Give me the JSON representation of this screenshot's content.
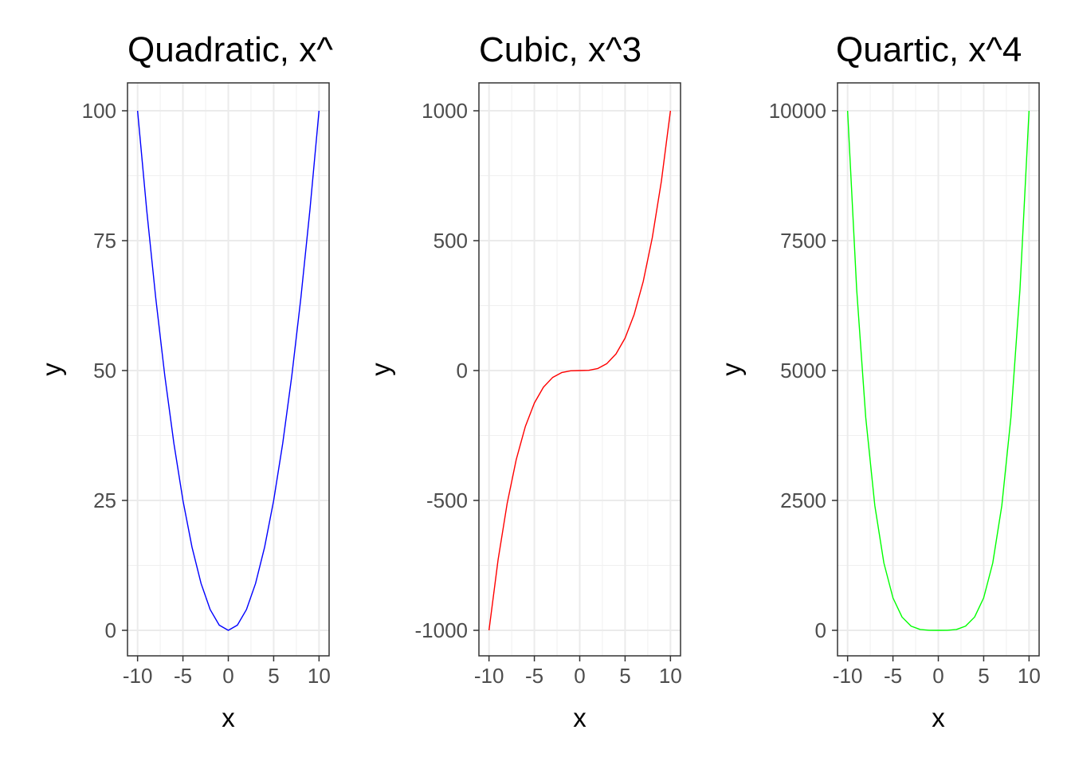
{
  "chart_data": [
    {
      "type": "line",
      "title": "Quadratic, x^",
      "xlabel": "x",
      "ylabel": "y",
      "xlim": [
        -10,
        10
      ],
      "ylim": [
        0,
        100
      ],
      "xticks": [
        -10,
        -5,
        0,
        5,
        10
      ],
      "xtick_labels": [
        "-10",
        "-5",
        "0",
        "5",
        "10"
      ],
      "yticks": [
        0,
        25,
        50,
        75,
        100
      ],
      "ytick_labels": [
        "0",
        "25",
        "50",
        "75",
        "100"
      ],
      "grid": true,
      "color": "#0000ff",
      "series": [
        {
          "x": [
            -10,
            -9,
            -8,
            -7,
            -6,
            -5,
            -4,
            -3,
            -2,
            -1,
            0,
            1,
            2,
            3,
            4,
            5,
            6,
            7,
            8,
            9,
            10
          ],
          "y": [
            100,
            81,
            64,
            49,
            36,
            25,
            16,
            9,
            4,
            1,
            0,
            1,
            4,
            9,
            16,
            25,
            36,
            49,
            64,
            81,
            100
          ]
        }
      ]
    },
    {
      "type": "line",
      "title": "Cubic, x^3",
      "xlabel": "x",
      "ylabel": "y",
      "xlim": [
        -10,
        10
      ],
      "ylim": [
        -1000,
        1000
      ],
      "xticks": [
        -10,
        -5,
        0,
        5,
        10
      ],
      "xtick_labels": [
        "-10",
        "-5",
        "0",
        "5",
        "10"
      ],
      "yticks": [
        -1000,
        -500,
        0,
        500,
        1000
      ],
      "ytick_labels": [
        "-1000",
        "-500",
        "0",
        "500",
        "1000"
      ],
      "grid": true,
      "color": "#ff0000",
      "series": [
        {
          "x": [
            -10,
            -9,
            -8,
            -7,
            -6,
            -5,
            -4,
            -3,
            -2,
            -1,
            0,
            1,
            2,
            3,
            4,
            5,
            6,
            7,
            8,
            9,
            10
          ],
          "y": [
            -1000,
            -729,
            -512,
            -343,
            -216,
            -125,
            -64,
            -27,
            -8,
            -1,
            0,
            1,
            8,
            27,
            64,
            125,
            216,
            343,
            512,
            729,
            1000
          ]
        }
      ]
    },
    {
      "type": "line",
      "title": "Quartic, x^4",
      "xlabel": "x",
      "ylabel": "y",
      "xlim": [
        -10,
        10
      ],
      "ylim": [
        0,
        10000
      ],
      "xticks": [
        -10,
        -5,
        0,
        5,
        10
      ],
      "xtick_labels": [
        "-10",
        "-5",
        "0",
        "5",
        "10"
      ],
      "yticks": [
        0,
        2500,
        5000,
        7500,
        10000
      ],
      "ytick_labels": [
        "0",
        "2500",
        "5000",
        "7500",
        "10000"
      ],
      "grid": true,
      "color": "#00ff00",
      "series": [
        {
          "x": [
            -10,
            -9,
            -8,
            -7,
            -6,
            -5,
            -4,
            -3,
            -2,
            -1,
            0,
            1,
            2,
            3,
            4,
            5,
            6,
            7,
            8,
            9,
            10
          ],
          "y": [
            10000,
            6561,
            4096,
            2401,
            1296,
            625,
            256,
            81,
            16,
            1,
            0,
            1,
            16,
            81,
            256,
            625,
            1296,
            2401,
            4096,
            6561,
            10000
          ]
        }
      ]
    }
  ]
}
